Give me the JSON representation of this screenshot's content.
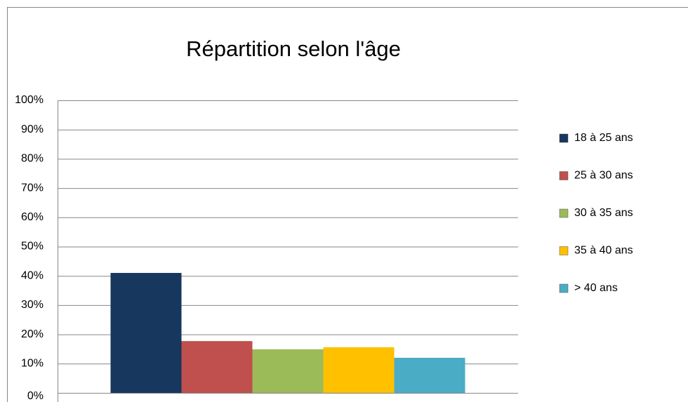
{
  "chart_data": {
    "type": "bar",
    "title": "Répartition selon l'âge",
    "categories": [
      null
    ],
    "series": [
      {
        "name": "18 à 25 ans",
        "color": "#17375e",
        "values": [
          41
        ]
      },
      {
        "name": "25 à 30 ans",
        "color": "#c0504d",
        "values": [
          17.7
        ]
      },
      {
        "name": "30 à 35 ans",
        "color": "#9bbb59",
        "values": [
          14.9
        ]
      },
      {
        "name": "35 à 40 ans",
        "color": "#ffc000",
        "values": [
          15.6
        ]
      },
      {
        "name": "> 40 ans",
        "color": "#4bacc6",
        "values": [
          12
        ]
      }
    ],
    "ylim": [
      0,
      100
    ],
    "yticks": [
      {
        "value": 0,
        "label": "0%"
      },
      {
        "value": 10,
        "label": "10%"
      },
      {
        "value": 20,
        "label": "20%"
      },
      {
        "value": 30,
        "label": "30%"
      },
      {
        "value": 40,
        "label": "40%"
      },
      {
        "value": 50,
        "label": "50%"
      },
      {
        "value": 60,
        "label": "60%"
      },
      {
        "value": 70,
        "label": "70%"
      },
      {
        "value": 80,
        "label": "80%"
      },
      {
        "value": 90,
        "label": "90%"
      },
      {
        "value": 100,
        "label": "100%"
      }
    ],
    "grid": true,
    "legend": "right"
  }
}
